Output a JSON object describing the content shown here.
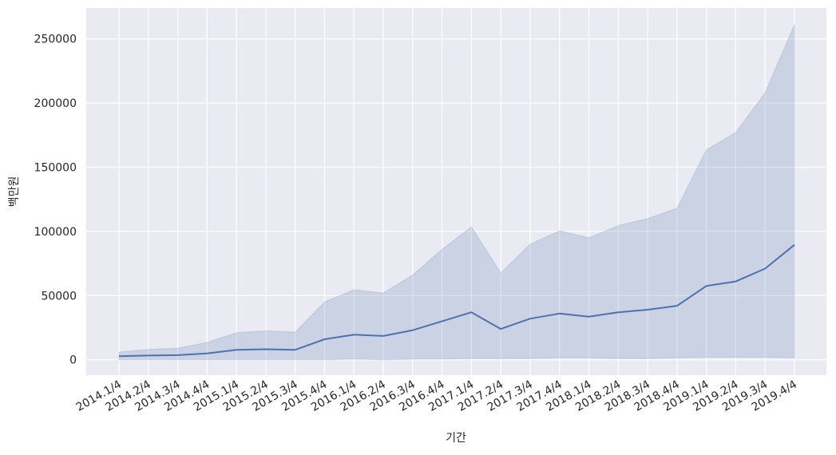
{
  "chart_data": {
    "type": "line",
    "title": "",
    "xlabel": "기간",
    "ylabel": "백만원",
    "categories": [
      "2014.1/4",
      "2014.2/4",
      "2014.3/4",
      "2014.4/4",
      "2015.1/4",
      "2015.2/4",
      "2015.3/4",
      "2015.4/4",
      "2016.1/4",
      "2016.2/4",
      "2016.3/4",
      "2016.4/4",
      "2017.1/4",
      "2017.2/4",
      "2017.3/4",
      "2017.4/4",
      "2018.1/4",
      "2018.2/4",
      "2018.3/4",
      "2018.4/4",
      "2019.1/4",
      "2019.2/4",
      "2019.3/4",
      "2019.4/4"
    ],
    "series": [
      {
        "values": [
          2800,
          3300,
          3600,
          5000,
          7800,
          8200,
          7800,
          16000,
          19500,
          18500,
          23000,
          30000,
          37000,
          24000,
          32000,
          36000,
          33500,
          37000,
          39000,
          42000,
          57500,
          61000,
          71000,
          89500
        ],
        "band_upper": [
          6000,
          8000,
          9000,
          13500,
          21000,
          22500,
          21500,
          45000,
          54500,
          52000,
          66000,
          86000,
          103500,
          67500,
          90000,
          100500,
          95000,
          104500,
          110000,
          118000,
          163500,
          177000,
          208000,
          261000
        ],
        "band_lower": [
          0,
          0,
          0,
          0,
          0,
          0,
          0,
          0,
          500,
          0,
          500,
          500,
          1000,
          1000,
          1000,
          1500,
          1500,
          1000,
          1000,
          1500,
          2000,
          2000,
          2000,
          1500
        ]
      }
    ],
    "yticks": [
      0,
      50000,
      100000,
      150000,
      200000,
      250000
    ],
    "ylim": [
      -12000,
      274000
    ],
    "grid": true,
    "colors": {
      "line": "#4c72b0",
      "band": "#4c72b0",
      "background": "#eaeaf2",
      "grid": "#ffffff"
    }
  }
}
